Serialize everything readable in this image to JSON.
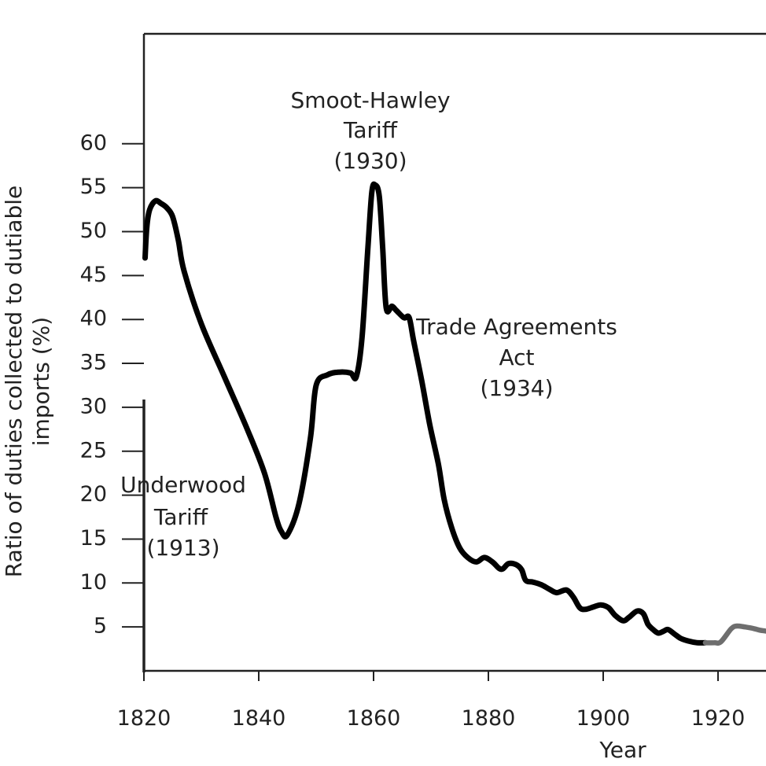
{
  "chart_data": {
    "type": "line",
    "xlabel": "Year",
    "ylabel_lines": [
      "Ratio of duties collected to dutiable",
      "imports (%)"
    ],
    "xlim": [
      1820,
      1930
    ],
    "ylim": [
      0,
      65
    ],
    "x_ticks": [
      1820,
      1840,
      1860,
      1880,
      1900,
      1920
    ],
    "x_tick_labels": [
      "1820",
      "1840",
      "1860",
      "1880",
      "1900",
      "1920"
    ],
    "y_ticks": [
      5,
      10,
      15,
      20,
      25,
      30,
      35,
      40,
      45,
      50,
      55,
      60
    ],
    "y_tick_labels": [
      "5",
      "10",
      "15",
      "20",
      "25",
      "30",
      "35",
      "40",
      "45",
      "50",
      "55",
      "60"
    ],
    "grid": false,
    "series": [
      {
        "color": "#000000",
        "x": [
          1820.2,
          1820.5,
          1821,
          1822,
          1823,
          1824,
          1825,
          1826,
          1827,
          1830,
          1834,
          1838,
          1841,
          1843,
          1844,
          1845,
          1847,
          1849,
          1850,
          1852,
          1854,
          1856,
          1857,
          1858,
          1859,
          1859.7,
          1860.3,
          1861,
          1861.6,
          1862.2,
          1863.2,
          1864,
          1865.3,
          1866.2,
          1867,
          1868.4,
          1869.8,
          1871.3,
          1872.3,
          1873.6,
          1875,
          1876.4,
          1877.9,
          1879.3,
          1880.7,
          1881.8,
          1882.5,
          1883.5,
          1884.8,
          1885.8,
          1886.5,
          1887.8,
          1889.2,
          1890.6,
          1891.9,
          1893.6,
          1894.8,
          1895.9,
          1896.9,
          1898.4,
          1899.6,
          1900.9,
          1902.1,
          1903.5,
          1904.5,
          1905.9,
          1907,
          1907.8,
          1908.7,
          1909.6,
          1910.5,
          1911.3,
          1912.4,
          1913.5,
          1914.8,
          1916.4,
          1917.8
        ],
        "y": [
          47,
          50.5,
          52.5,
          53.5,
          53.2,
          52.7,
          51.7,
          49,
          45.5,
          39.5,
          33.5,
          27.5,
          22.5,
          17.5,
          15.8,
          15.5,
          19,
          26.5,
          32.5,
          33.7,
          34,
          33.9,
          33.5,
          38,
          48,
          54.5,
          55.3,
          54,
          48,
          41.3,
          41.5,
          41,
          40.2,
          40.2,
          37.5,
          33,
          28,
          23.5,
          19.5,
          16.3,
          14,
          12.9,
          12.4,
          12.9,
          12.4,
          11.7,
          11.6,
          12.2,
          12.1,
          11.5,
          10.3,
          10.1,
          9.8,
          9.3,
          8.9,
          9.2,
          8.4,
          7.2,
          7,
          7.3,
          7.5,
          7.2,
          6.3,
          5.7,
          6.1,
          6.8,
          6.5,
          5.3,
          4.7,
          4.3,
          4.5,
          4.7,
          4.2,
          3.7,
          3.4,
          3.2,
          3.2
        ]
      },
      {
        "color": "#6e6e6e",
        "x": [
          1917.8,
          1919.4,
          1920.5,
          1922.3,
          1923.3,
          1924.6,
          1926.3,
          1927.5,
          1930
        ],
        "y": [
          3.2,
          3.2,
          3.3,
          4.8,
          5.1,
          5.0,
          4.8,
          4.6,
          4.4
        ]
      }
    ],
    "annotations": [
      {
        "lines": [
          "Smoot-Hawley",
          "Tariff",
          "(1930)"
        ]
      },
      {
        "lines": [
          "Trade Agreements",
          "Act",
          "(1934)"
        ]
      },
      {
        "lines": [
          "Underwood",
          "Tariff",
          "(1913)"
        ]
      }
    ]
  }
}
